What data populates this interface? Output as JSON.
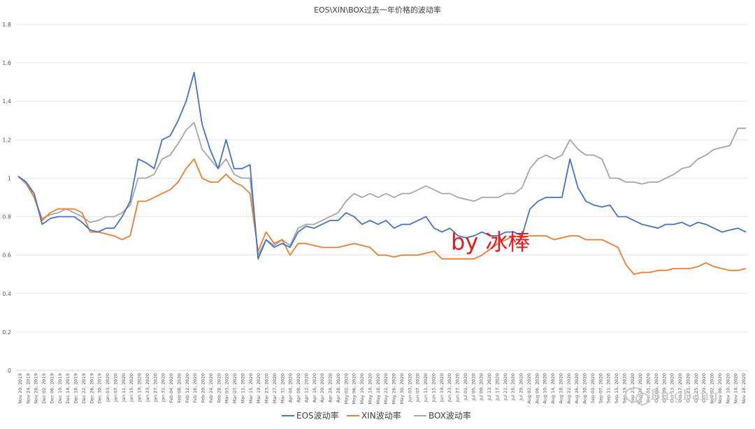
{
  "chart_data": {
    "type": "line",
    "title": "EOS\\XIN\\BOX过去一年价格的波动率",
    "xlabel": "",
    "ylabel": "",
    "ylim": [
      0,
      1.8
    ],
    "yticks": [
      "0",
      "0.2",
      "0.4",
      "0.6",
      "0.8",
      "1",
      "1.2",
      "1.4",
      "1.6",
      "1.8"
    ],
    "grid": "horizontal",
    "legend_position": "bottom",
    "x_labels": [
      "Nov 20, 2019",
      "Nov 24, 2019",
      "Nov 28, 2019",
      "Dec 02, 2019",
      "Dec 06, 2019",
      "Dec 10, 2019",
      "Dec 14, 2019",
      "Dec 18, 2019",
      "Dec 22, 2019",
      "Dec 26, 2019",
      "Dec 30, 2019",
      "Jan 03, 2020",
      "Jan 07, 2020",
      "Jan 11, 2020",
      "Jan 15, 2020",
      "Jan 19, 2020",
      "Jan 23, 2020",
      "Jan 27, 2020",
      "Jan 31, 2020",
      "Feb 04, 2020",
      "Feb 08, 2020",
      "Feb 12, 2020",
      "Feb 16, 2020",
      "Feb 20, 2020",
      "Feb 24, 2020",
      "Feb 28, 2020",
      "Mar 03, 2020",
      "Mar 07, 2020",
      "Mar 11, 2020",
      "Mar 15, 2020",
      "Mar 19, 2020",
      "Mar 23, 2020",
      "Mar 27, 2020",
      "Mar 31, 2020",
      "Apr 04, 2020",
      "Apr 08, 2020",
      "Apr 12, 2020",
      "Apr 16, 2020",
      "Apr 20, 2020",
      "Apr 24, 2020",
      "Apr 28, 2020",
      "May 02, 2020",
      "May 06, 2020",
      "May 10, 2020",
      "May 14, 2020",
      "May 18, 2020",
      "May 22, 2020",
      "May 26, 2020",
      "May 30, 2020",
      "Jun 03, 2020",
      "Jun 07, 2020",
      "Jun 11, 2020",
      "Jun 15, 2020",
      "Jun 19, 2020",
      "Jun 23, 2020",
      "Jun 27, 2020",
      "Jul 01, 2020",
      "Jul 05, 2020",
      "Jul 09, 2020",
      "Jul 13, 2020",
      "Jul 17, 2020",
      "Jul 21, 2020",
      "Jul 25, 2020",
      "Jul 29, 2020",
      "Aug 02, 2020",
      "Aug 06, 2020",
      "Aug 10, 2020",
      "Aug 14, 2020",
      "Aug 18, 2020",
      "Aug 22, 2020",
      "Aug 26, 2020",
      "Aug 30, 2020",
      "Sep 03, 2020",
      "Sep 07, 2020",
      "Sep 11, 2020",
      "Sep 15, 2020",
      "Sep 19, 2020",
      "Sep 23, 2020",
      "Sep 27, 2020",
      "Oct 01, 2020",
      "Oct 05, 2020",
      "Oct 09, 2020",
      "Oct 13, 2020",
      "Oct 17, 2020",
      "Oct 21, 2020",
      "Oct 25, 2020",
      "Oct 29, 2020",
      "Nov 02, 2020",
      "Nov 06, 2020",
      "Nov 10, 2020",
      "Nov 14, 2020",
      "Nov 18, 2020"
    ],
    "series": [
      {
        "name": "EOS波动率",
        "color": "#4472c4",
        "values": [
          1.01,
          0.98,
          0.92,
          0.76,
          0.79,
          0.8,
          0.8,
          0.8,
          0.77,
          0.73,
          0.72,
          0.74,
          0.74,
          0.8,
          0.88,
          1.1,
          1.08,
          1.05,
          1.2,
          1.22,
          1.3,
          1.4,
          1.55,
          1.28,
          1.15,
          1.05,
          1.2,
          1.05,
          1.05,
          1.07,
          0.58,
          0.68,
          0.64,
          0.66,
          0.64,
          0.72,
          0.75,
          0.74,
          0.76,
          0.78,
          0.78,
          0.82,
          0.8,
          0.76,
          0.78,
          0.76,
          0.78,
          0.74,
          0.76,
          0.76,
          0.78,
          0.8,
          0.74,
          0.72,
          0.74,
          0.7,
          0.69,
          0.7,
          0.72,
          0.7,
          0.7,
          0.72,
          0.72,
          0.7,
          0.84,
          0.88,
          0.9,
          0.9,
          0.9,
          1.1,
          0.95,
          0.88,
          0.86,
          0.85,
          0.86,
          0.8,
          0.8,
          0.78,
          0.76,
          0.75,
          0.74,
          0.76,
          0.76,
          0.77,
          0.75,
          0.77,
          0.76,
          0.74,
          0.72,
          0.73,
          0.74,
          0.72
        ]
      },
      {
        "name": "XIN波动率",
        "color": "#ed7d31",
        "values": [
          1.01,
          0.98,
          0.9,
          0.78,
          0.82,
          0.84,
          0.84,
          0.84,
          0.82,
          0.72,
          0.72,
          0.71,
          0.7,
          0.68,
          0.7,
          0.88,
          0.88,
          0.9,
          0.92,
          0.94,
          0.98,
          1.05,
          1.1,
          1.0,
          0.98,
          0.98,
          1.02,
          0.98,
          0.96,
          0.92,
          0.62,
          0.72,
          0.66,
          0.68,
          0.6,
          0.66,
          0.66,
          0.65,
          0.64,
          0.64,
          0.64,
          0.65,
          0.66,
          0.65,
          0.64,
          0.6,
          0.6,
          0.59,
          0.6,
          0.6,
          0.6,
          0.61,
          0.62,
          0.58,
          0.58,
          0.58,
          0.58,
          0.58,
          0.6,
          0.63,
          0.66,
          0.68,
          0.7,
          0.69,
          0.7,
          0.7,
          0.7,
          0.68,
          0.69,
          0.7,
          0.7,
          0.68,
          0.68,
          0.68,
          0.66,
          0.64,
          0.55,
          0.5,
          0.51,
          0.51,
          0.52,
          0.52,
          0.53,
          0.53,
          0.53,
          0.54,
          0.56,
          0.54,
          0.53,
          0.52,
          0.52,
          0.53
        ]
      },
      {
        "name": "BOX波动率",
        "color": "#a5a5a5",
        "values": [
          1.01,
          0.97,
          0.9,
          0.79,
          0.81,
          0.82,
          0.84,
          0.82,
          0.8,
          0.77,
          0.78,
          0.8,
          0.8,
          0.82,
          0.86,
          1.0,
          1.0,
          1.02,
          1.1,
          1.12,
          1.18,
          1.25,
          1.29,
          1.15,
          1.1,
          1.05,
          1.1,
          1.02,
          1.0,
          1.0,
          0.6,
          0.68,
          0.65,
          0.68,
          0.65,
          0.74,
          0.76,
          0.76,
          0.78,
          0.8,
          0.82,
          0.88,
          0.92,
          0.9,
          0.92,
          0.9,
          0.92,
          0.9,
          0.92,
          0.92,
          0.94,
          0.96,
          0.94,
          0.92,
          0.92,
          0.9,
          0.89,
          0.88,
          0.9,
          0.9,
          0.9,
          0.92,
          0.92,
          0.95,
          1.05,
          1.1,
          1.12,
          1.1,
          1.12,
          1.2,
          1.15,
          1.12,
          1.12,
          1.1,
          1.0,
          1.0,
          0.98,
          0.98,
          0.97,
          0.98,
          0.98,
          1.0,
          1.02,
          1.05,
          1.06,
          1.1,
          1.12,
          1.15,
          1.16,
          1.17,
          1.26,
          1.26
        ]
      }
    ]
  },
  "watermark": {
    "text": "by 冰棒"
  },
  "logo": {
    "text": "Bingbang",
    "icon": "wechat-icon"
  }
}
